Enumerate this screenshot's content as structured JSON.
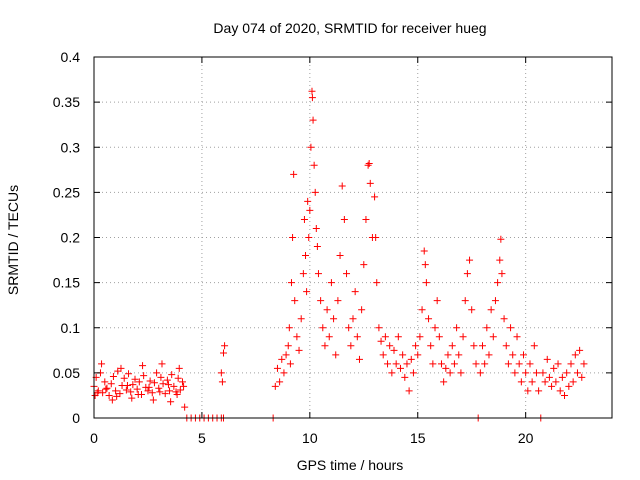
{
  "chart_data": {
    "type": "scatter",
    "title": "Day 074 of 2020, SRMTID for receiver hueg",
    "xlabel": "GPS time / hours",
    "ylabel": "SRMTID / TECUs",
    "xlim": [
      0,
      24
    ],
    "ylim": [
      0,
      0.4
    ],
    "grid": true,
    "marker": "+",
    "x_ticks": [
      0,
      5,
      10,
      15,
      20
    ],
    "x_tick_labels": [
      "0",
      "5",
      "10",
      "15",
      "20"
    ],
    "y_ticks": [
      0,
      0.05,
      0.1,
      0.15,
      0.2,
      0.25,
      0.3,
      0.35,
      0.4
    ],
    "y_tick_labels": [
      "0",
      "0.05",
      "0.1",
      "0.15",
      "0.2",
      "0.25",
      "0.3",
      "0.35",
      "0.4"
    ],
    "series": [
      {
        "name": "SRMTID",
        "color": "#ff0000",
        "points": [
          [
            0.0,
            0.035
          ],
          [
            0.1,
            0.045
          ],
          [
            0.2,
            0.03
          ],
          [
            0.3,
            0.05
          ],
          [
            0.4,
            0.028
          ],
          [
            0.5,
            0.04
          ],
          [
            0.6,
            0.033
          ],
          [
            0.7,
            0.025
          ],
          [
            0.8,
            0.038
          ],
          [
            0.9,
            0.046
          ],
          [
            1.0,
            0.03
          ],
          [
            1.1,
            0.052
          ],
          [
            1.2,
            0.027
          ],
          [
            1.3,
            0.036
          ],
          [
            1.4,
            0.044
          ],
          [
            1.5,
            0.031
          ],
          [
            1.6,
            0.049
          ],
          [
            1.7,
            0.029
          ],
          [
            1.8,
            0.037
          ],
          [
            1.9,
            0.043
          ],
          [
            2.0,
            0.032
          ],
          [
            2.1,
            0.04
          ],
          [
            2.2,
            0.026
          ],
          [
            2.3,
            0.047
          ],
          [
            2.4,
            0.034
          ],
          [
            2.5,
            0.03
          ],
          [
            2.6,
            0.041
          ],
          [
            2.7,
            0.028
          ],
          [
            2.8,
            0.039
          ],
          [
            2.9,
            0.05
          ],
          [
            3.0,
            0.033
          ],
          [
            3.1,
            0.045
          ],
          [
            3.2,
            0.038
          ],
          [
            3.3,
            0.027
          ],
          [
            3.4,
            0.042
          ],
          [
            3.5,
            0.03
          ],
          [
            3.6,
            0.048
          ],
          [
            3.7,
            0.035
          ],
          [
            3.8,
            0.029
          ],
          [
            3.9,
            0.044
          ],
          [
            4.0,
            0.031
          ],
          [
            4.1,
            0.04
          ],
          [
            4.2,
            0.012
          ],
          [
            0.05,
            0.025
          ],
          [
            0.35,
            0.06
          ],
          [
            0.85,
            0.02
          ],
          [
            1.25,
            0.055
          ],
          [
            1.75,
            0.022
          ],
          [
            2.25,
            0.058
          ],
          [
            2.75,
            0.02
          ],
          [
            3.15,
            0.06
          ],
          [
            3.55,
            0.018
          ],
          [
            3.95,
            0.055
          ],
          [
            0.15,
            0.028
          ],
          [
            0.55,
            0.032
          ],
          [
            1.05,
            0.024
          ],
          [
            1.55,
            0.036
          ],
          [
            2.05,
            0.026
          ],
          [
            2.55,
            0.034
          ],
          [
            3.05,
            0.029
          ],
          [
            3.45,
            0.037
          ],
          [
            3.85,
            0.026
          ],
          [
            4.15,
            0.035
          ],
          [
            4.3,
            0
          ],
          [
            4.5,
            0
          ],
          [
            4.7,
            0
          ],
          [
            4.9,
            0
          ],
          [
            5.1,
            0
          ],
          [
            5.3,
            0
          ],
          [
            5.5,
            0
          ],
          [
            5.7,
            0
          ],
          [
            5.9,
            0
          ],
          [
            6.0,
            0
          ],
          [
            5.9,
            0.05
          ],
          [
            6.0,
            0.072
          ],
          [
            6.05,
            0.08
          ],
          [
            5.95,
            0.04
          ],
          [
            8.3,
            0
          ],
          [
            8.4,
            0.035
          ],
          [
            8.5,
            0.055
          ],
          [
            8.6,
            0.04
          ],
          [
            8.7,
            0.065
          ],
          [
            8.8,
            0.05
          ],
          [
            8.9,
            0.07
          ],
          [
            9.0,
            0.08
          ],
          [
            9.05,
            0.1
          ],
          [
            9.1,
            0.06
          ],
          [
            9.15,
            0.15
          ],
          [
            9.2,
            0.2
          ],
          [
            9.25,
            0.27
          ],
          [
            9.3,
            0.13
          ],
          [
            9.4,
            0.09
          ],
          [
            9.5,
            0.075
          ],
          [
            9.6,
            0.11
          ],
          [
            9.7,
            0.16
          ],
          [
            9.75,
            0.22
          ],
          [
            9.8,
            0.18
          ],
          [
            9.85,
            0.14
          ],
          [
            9.9,
            0.24
          ],
          [
            9.95,
            0.2
          ],
          [
            10.0,
            0.23
          ],
          [
            10.05,
            0.3
          ],
          [
            10.1,
            0.362
          ],
          [
            10.12,
            0.355
          ],
          [
            10.15,
            0.33
          ],
          [
            10.2,
            0.28
          ],
          [
            10.25,
            0.25
          ],
          [
            10.3,
            0.21
          ],
          [
            10.35,
            0.19
          ],
          [
            10.4,
            0.16
          ],
          [
            10.5,
            0.13
          ],
          [
            10.6,
            0.1
          ],
          [
            10.7,
            0.08
          ],
          [
            10.8,
            0.12
          ],
          [
            10.9,
            0.09
          ],
          [
            11.0,
            0.15
          ],
          [
            11.1,
            0.11
          ],
          [
            11.2,
            0.07
          ],
          [
            11.3,
            0.13
          ],
          [
            11.4,
            0.18
          ],
          [
            11.5,
            0.257
          ],
          [
            11.6,
            0.22
          ],
          [
            11.7,
            0.16
          ],
          [
            11.8,
            0.1
          ],
          [
            11.9,
            0.08
          ],
          [
            12.0,
            0.11
          ],
          [
            12.1,
            0.14
          ],
          [
            12.2,
            0.09
          ],
          [
            12.3,
            0.065
          ],
          [
            12.4,
            0.12
          ],
          [
            12.5,
            0.17
          ],
          [
            12.6,
            0.22
          ],
          [
            12.7,
            0.28
          ],
          [
            12.75,
            0.282
          ],
          [
            12.8,
            0.26
          ],
          [
            12.9,
            0.2
          ],
          [
            13.0,
            0.245
          ],
          [
            13.05,
            0.2
          ],
          [
            13.1,
            0.15
          ],
          [
            13.2,
            0.1
          ],
          [
            13.3,
            0.085
          ],
          [
            13.4,
            0.07
          ],
          [
            13.5,
            0.09
          ],
          [
            13.6,
            0.06
          ],
          [
            13.7,
            0.08
          ],
          [
            13.8,
            0.05
          ],
          [
            13.9,
            0.075
          ],
          [
            14.0,
            0.06
          ],
          [
            14.1,
            0.09
          ],
          [
            14.2,
            0.055
          ],
          [
            14.3,
            0.07
          ],
          [
            14.4,
            0.045
          ],
          [
            14.5,
            0.06
          ],
          [
            14.6,
            0.03
          ],
          [
            14.7,
            0.065
          ],
          [
            14.8,
            0.05
          ],
          [
            14.9,
            0.08
          ],
          [
            15.0,
            0.07
          ],
          [
            15.1,
            0.09
          ],
          [
            15.2,
            0.12
          ],
          [
            15.3,
            0.185
          ],
          [
            15.35,
            0.17
          ],
          [
            15.4,
            0.15
          ],
          [
            15.5,
            0.11
          ],
          [
            15.6,
            0.08
          ],
          [
            15.7,
            0.06
          ],
          [
            15.8,
            0.1
          ],
          [
            15.9,
            0.13
          ],
          [
            16.0,
            0.09
          ],
          [
            16.1,
            0.06
          ],
          [
            16.2,
            0.04
          ],
          [
            16.3,
            0.055
          ],
          [
            16.4,
            0.07
          ],
          [
            16.5,
            0.05
          ],
          [
            16.6,
            0.08
          ],
          [
            16.7,
            0.06
          ],
          [
            16.8,
            0.1
          ],
          [
            16.9,
            0.07
          ],
          [
            17.0,
            0.05
          ],
          [
            17.1,
            0.09
          ],
          [
            17.2,
            0.13
          ],
          [
            17.3,
            0.16
          ],
          [
            17.4,
            0.175
          ],
          [
            17.5,
            0.12
          ],
          [
            17.6,
            0.08
          ],
          [
            17.7,
            0.06
          ],
          [
            17.8,
            0
          ],
          [
            17.9,
            0.05
          ],
          [
            18.0,
            0.08
          ],
          [
            18.1,
            0.06
          ],
          [
            18.2,
            0.1
          ],
          [
            18.3,
            0.07
          ],
          [
            18.4,
            0.12
          ],
          [
            18.5,
            0.09
          ],
          [
            18.6,
            0.13
          ],
          [
            18.7,
            0.15
          ],
          [
            18.8,
            0.175
          ],
          [
            18.85,
            0.198
          ],
          [
            18.9,
            0.16
          ],
          [
            19.0,
            0.11
          ],
          [
            19.1,
            0.08
          ],
          [
            19.2,
            0.06
          ],
          [
            19.3,
            0.1
          ],
          [
            19.4,
            0.07
          ],
          [
            19.5,
            0.05
          ],
          [
            19.6,
            0.09
          ],
          [
            19.7,
            0.06
          ],
          [
            19.8,
            0.04
          ],
          [
            19.9,
            0.07
          ],
          [
            20.0,
            0.05
          ],
          [
            20.1,
            0.03
          ],
          [
            20.2,
            0.06
          ],
          [
            20.3,
            0.04
          ],
          [
            20.4,
            0.08
          ],
          [
            20.5,
            0.05
          ],
          [
            20.6,
            0.03
          ],
          [
            20.7,
            0
          ],
          [
            20.8,
            0.05
          ],
          [
            20.9,
            0.04
          ],
          [
            21.0,
            0.065
          ],
          [
            21.1,
            0.045
          ],
          [
            21.2,
            0.035
          ],
          [
            21.3,
            0.055
          ],
          [
            21.4,
            0.04
          ],
          [
            21.5,
            0.06
          ],
          [
            21.6,
            0.03
          ],
          [
            21.7,
            0.045
          ],
          [
            21.8,
            0.025
          ],
          [
            21.9,
            0.05
          ],
          [
            22.0,
            0.035
          ],
          [
            22.1,
            0.06
          ],
          [
            22.2,
            0.04
          ],
          [
            22.3,
            0.07
          ],
          [
            22.4,
            0.05
          ],
          [
            22.5,
            0.075
          ],
          [
            22.6,
            0.045
          ],
          [
            22.7,
            0.06
          ]
        ]
      }
    ]
  }
}
